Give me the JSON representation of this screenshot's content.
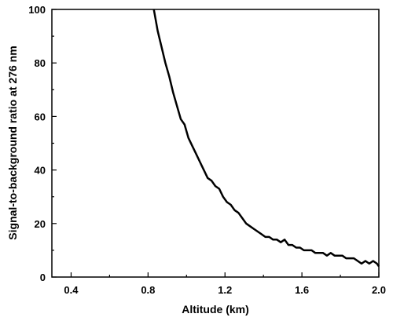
{
  "chart_data": {
    "type": "line",
    "title": "",
    "xlabel": "Altitude (km)",
    "ylabel": "Signal-to-background ratio at 276 nm",
    "xlim": [
      0.3,
      2.0
    ],
    "ylim": [
      0,
      100
    ],
    "xticks": [
      0.4,
      0.8,
      1.2,
      1.6,
      2.0
    ],
    "xtick_labels": [
      "0.4",
      "0.8",
      "1.2",
      "1.6",
      "2.0"
    ],
    "yticks": [
      0,
      20,
      40,
      60,
      80,
      100
    ],
    "ytick_labels": [
      "0",
      "20",
      "40",
      "60",
      "80",
      "100"
    ],
    "grid": false,
    "legend": "none",
    "line_color": "#000000",
    "series": [
      {
        "x": [
          0.83,
          0.85,
          0.87,
          0.89,
          0.91,
          0.93,
          0.95,
          0.97,
          0.99,
          1.01,
          1.03,
          1.05,
          1.07,
          1.09,
          1.11,
          1.13,
          1.15,
          1.17,
          1.19,
          1.21,
          1.23,
          1.25,
          1.27,
          1.29,
          1.31,
          1.33,
          1.35,
          1.37,
          1.39,
          1.41,
          1.43,
          1.45,
          1.47,
          1.49,
          1.51,
          1.53,
          1.55,
          1.57,
          1.59,
          1.61,
          1.63,
          1.65,
          1.67,
          1.69,
          1.71,
          1.73,
          1.75,
          1.77,
          1.79,
          1.81,
          1.83,
          1.85,
          1.87,
          1.89,
          1.91,
          1.93,
          1.95,
          1.97,
          1.99,
          2.0
        ],
        "y": [
          100,
          92,
          86,
          80,
          75,
          69,
          64,
          59,
          57,
          52,
          49,
          46,
          43,
          40,
          37,
          36,
          34,
          33,
          30,
          28,
          27,
          25,
          24,
          22,
          20,
          19,
          18,
          17,
          16,
          15,
          15,
          14,
          14,
          13,
          14,
          12,
          12,
          11,
          11,
          10,
          10,
          10,
          9,
          9,
          9,
          8,
          9,
          8,
          8,
          8,
          7,
          7,
          7,
          6,
          5,
          6,
          5,
          6,
          5,
          4
        ]
      }
    ]
  }
}
